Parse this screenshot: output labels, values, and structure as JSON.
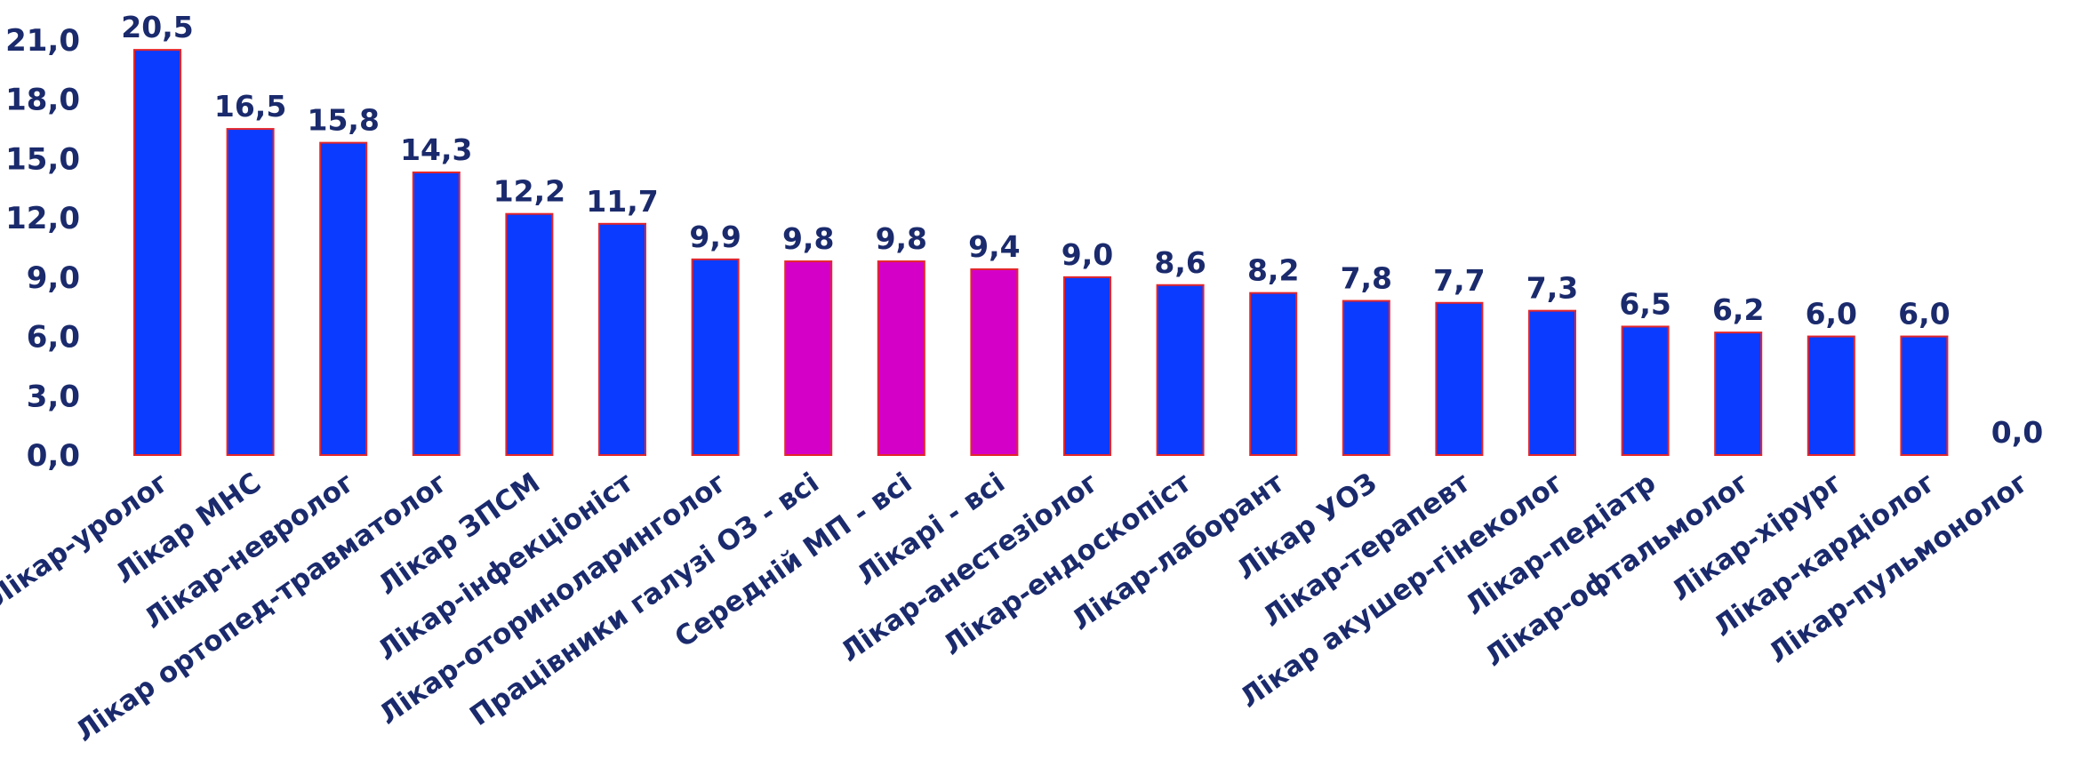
{
  "chart_data": {
    "type": "bar",
    "categories": [
      "Лікар-уролог",
      "Лікар МНС",
      "Лікар-невролог",
      "Лікар ортопед-травматолог",
      "Лікар ЗПСМ",
      "Лікар-інфекціоніст",
      "Лікар-оториноларинголог",
      "Працівники галузі ОЗ - всі",
      "Середній МП - всі",
      "Лікарі - всі",
      "Лікар-анестезіолог",
      "Лікар-ендоскопіст",
      "Лікар-лаборант",
      "Лікар УОЗ",
      "Лікар-терапевт",
      "Лікар акушер-гінеколог",
      "Лікар-педіатр",
      "Лікар-офтальмолог",
      "Лікар-хірург",
      "Лікар-кардіолог",
      "Лікар-пульмонолог"
    ],
    "values": [
      20.5,
      16.5,
      15.8,
      14.3,
      12.2,
      11.7,
      9.9,
      9.8,
      9.8,
      9.4,
      9.0,
      8.6,
      8.2,
      7.8,
      7.7,
      7.3,
      6.5,
      6.2,
      6.0,
      6.0,
      0.0
    ],
    "value_labels": [
      "20,5",
      "16,5",
      "15,8",
      "14,3",
      "12,2",
      "11,7",
      "9,9",
      "9,8",
      "9,8",
      "9,4",
      "9,0",
      "8,6",
      "8,2",
      "7,8",
      "7,7",
      "7,3",
      "6,5",
      "6,2",
      "6,0",
      "6,0",
      "0,0"
    ],
    "highlight_categories": [
      "Працівники галузі ОЗ - всі",
      "Середній МП - всі",
      "Лікарі - всі"
    ],
    "ylim": [
      0,
      21
    ],
    "yticks": [
      0,
      3,
      6,
      9,
      12,
      15,
      18,
      21
    ],
    "ytick_labels": [
      "0,0",
      "3,0",
      "6,0",
      "9,0",
      "12,0",
      "15,0",
      "18,0",
      "21,0"
    ],
    "title": "",
    "xlabel": "",
    "ylabel": "",
    "grid": false,
    "legend": false,
    "colors": {
      "bar": "#0b3bff",
      "highlight": "#d400c8",
      "bar_border": "#e3262b",
      "text": "#1a2a6c"
    }
  }
}
